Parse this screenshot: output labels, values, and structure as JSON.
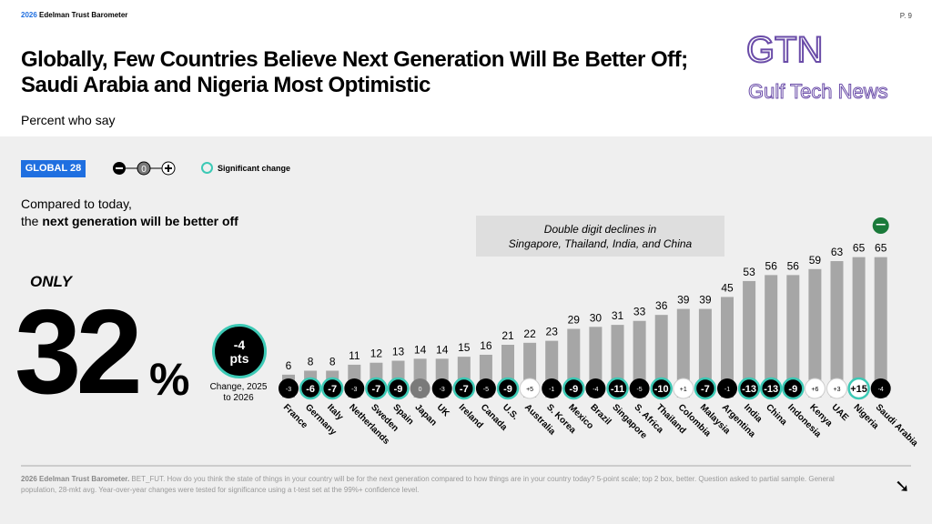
{
  "header": {
    "brand_year": "2026",
    "brand_name": "Edelman Trust Barometer",
    "page": "P. 9",
    "title_line1": "Globally, Few Countries Believe Next Generation Will Be Better Off;",
    "title_line2": "Saudi Arabia and Nigeria Most Optimistic",
    "subtitle": "Percent who say"
  },
  "watermark": {
    "line1": "GTN",
    "line2": "Gulf Tech News"
  },
  "legend": {
    "global_label": "GLOBAL 28",
    "minus": "−",
    "zero": "0",
    "plus": "+",
    "significant": "Significant change"
  },
  "question": {
    "line1": "Compared to today,",
    "line2_prefix": "the ",
    "line2_bold": "next generation will be better off"
  },
  "callout": {
    "line1": "Double digit declines in",
    "line2": "Singapore, Thailand, India, and China"
  },
  "global": {
    "only": "ONLY",
    "value": "32",
    "unit": "%",
    "change_value": "-4",
    "change_unit": "pts",
    "change_label": "Change, 2025 to 2026"
  },
  "colors": {
    "bar": "#a6a6a6",
    "accent": "#1f6fe0",
    "significant_ring": "#3cc9b5",
    "negative": "#000000",
    "positive": "#ffffff",
    "zero": "#7a7a7a"
  },
  "chart_data": {
    "type": "bar",
    "categories": [
      "France",
      "Germany",
      "Italy",
      "Netherlands",
      "Sweden",
      "Spain",
      "Japan",
      "UK",
      "Ireland",
      "Canada",
      "U.S.",
      "Australia",
      "S. Korea",
      "Mexico",
      "Brazil",
      "Singapore",
      "S. Africa",
      "Thailand",
      "Colombia",
      "Malaysia",
      "Argentina",
      "India",
      "China",
      "Indonesia",
      "Kenya",
      "UAE",
      "Nigeria",
      "Saudi Arabia"
    ],
    "values": [
      6,
      8,
      8,
      11,
      12,
      13,
      14,
      14,
      15,
      16,
      21,
      22,
      23,
      29,
      30,
      31,
      33,
      36,
      39,
      39,
      45,
      53,
      56,
      56,
      59,
      63,
      65,
      65
    ],
    "changes": [
      -3,
      -6,
      -7,
      -3,
      -7,
      -9,
      0,
      -3,
      -7,
      -5,
      -9,
      5,
      -1,
      -9,
      -4,
      -11,
      -5,
      -10,
      1,
      -7,
      -1,
      -13,
      -13,
      -9,
      6,
      3,
      15,
      -4
    ],
    "significant": [
      false,
      true,
      true,
      false,
      true,
      true,
      false,
      false,
      true,
      false,
      true,
      false,
      false,
      true,
      false,
      true,
      false,
      true,
      false,
      true,
      false,
      true,
      true,
      true,
      false,
      false,
      true,
      false
    ],
    "ylim": [
      0,
      100
    ],
    "grid": false,
    "highlight_icon": "saudi-flag-icon"
  },
  "footer": {
    "source_bold": "2026 Edelman Trust Barometer.",
    "text": " BET_FUT. How do you think the state of things in your country will be for the next generation compared to how things are in your country today? 5-point scale; top 2 box, better. Question asked to partial sample. General population, 28-mkt avg. Year-over-year changes were tested for significance using a t-test set at the 99%+ confidence level.",
    "next_icon": "arrow-down-right-icon"
  }
}
